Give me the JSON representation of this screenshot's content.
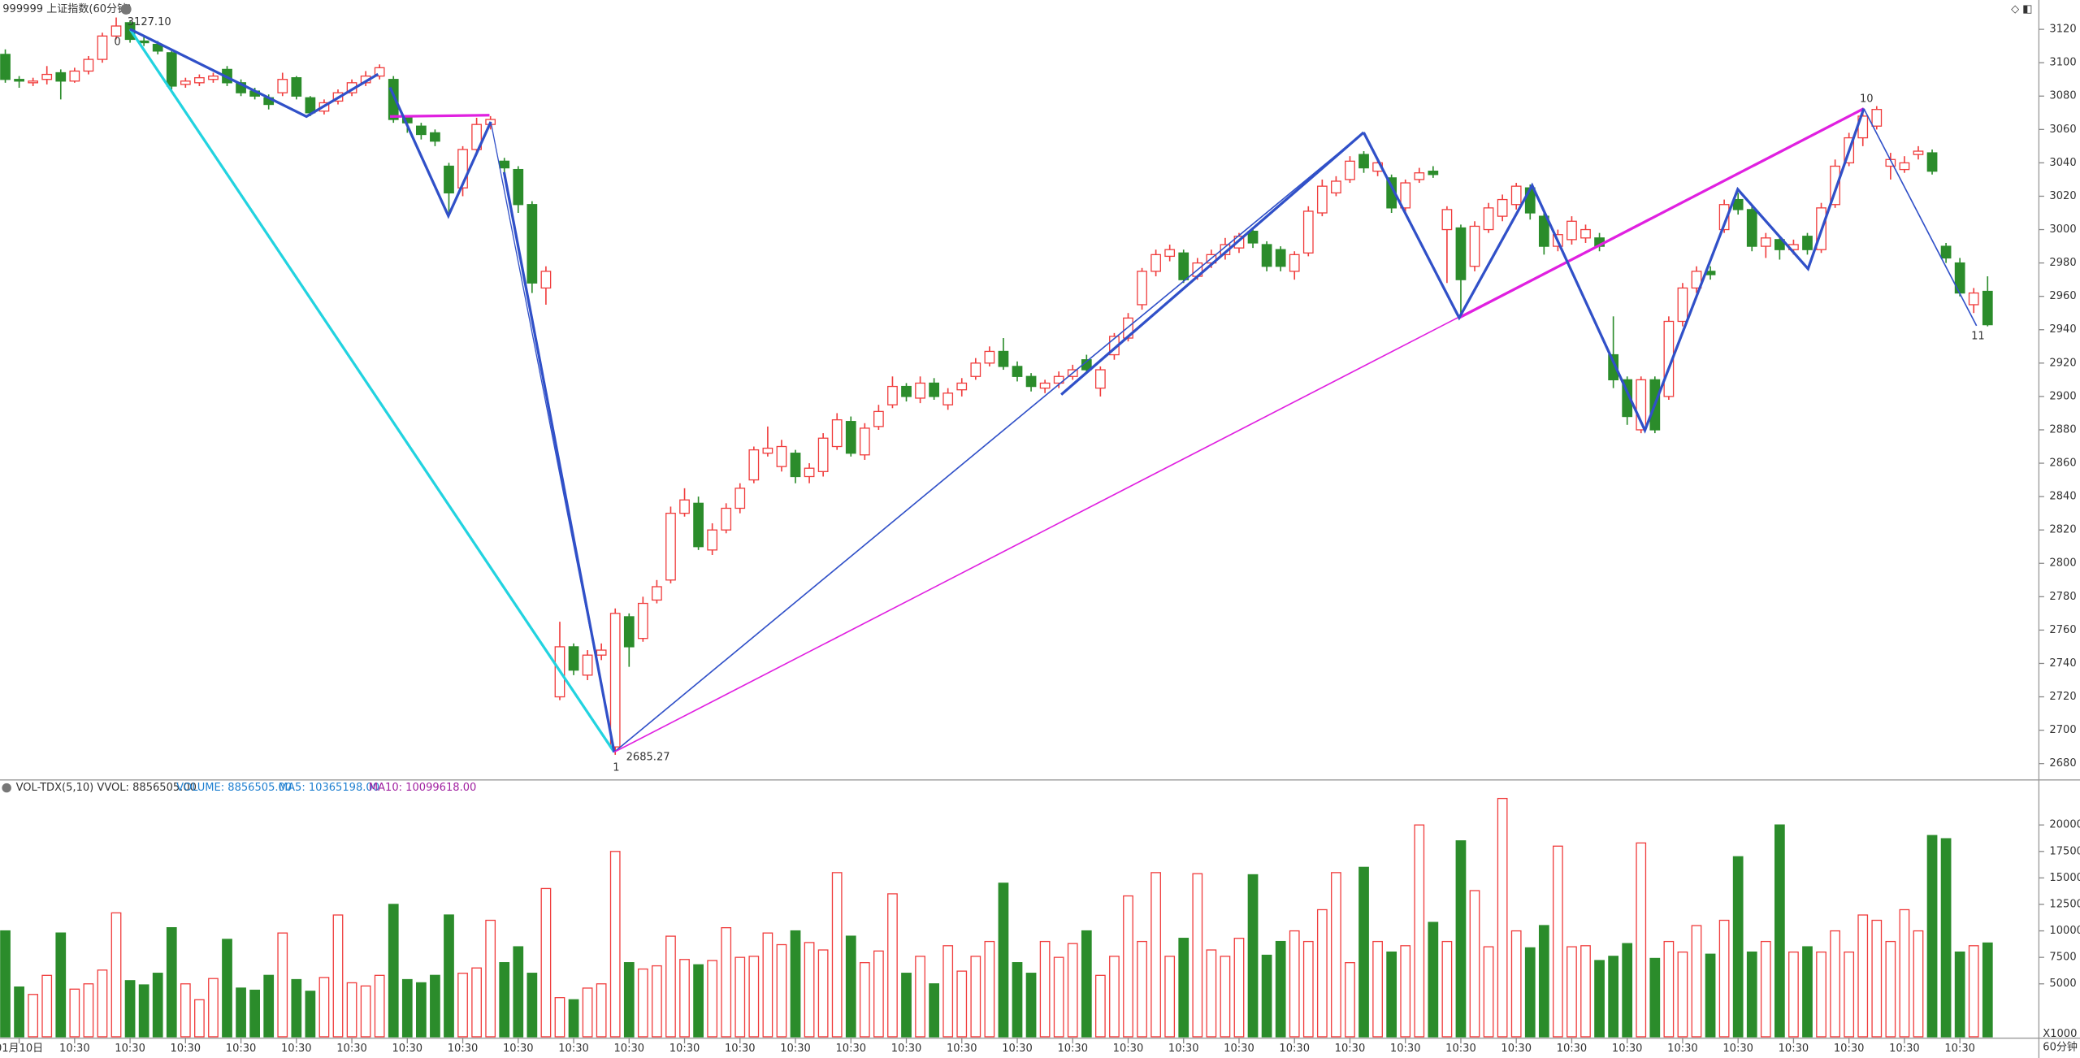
{
  "chart_data": {
    "type": "candlestick",
    "title": "999999 上证指数(60分钟)",
    "volume_title": "VOL-TDX(5,10) VVOL: 8856505.00",
    "volume_legend": [
      "VOLUME: 8856505.00",
      "MA5: 10365198.00",
      "MA10: 10099618.00"
    ],
    "volume_unit": "X1000",
    "period": "60分钟",
    "annotations": [
      "0",
      "3127.10",
      "1",
      "2685.27",
      "10",
      "11"
    ],
    "x_labels": [
      "01月10日",
      "10:30",
      "10:30",
      "10:30",
      "10:30",
      "10:30",
      "10:30",
      "10:30",
      "10:30",
      "10:30",
      "10:30",
      "10:30",
      "10:30",
      "10:30",
      "10:30",
      "10:30",
      "10:30",
      "10:30",
      "10:30",
      "10:30",
      "10:30",
      "10:30",
      "10:30",
      "10:30",
      "10:30",
      "10:30",
      "10:30",
      "10:30",
      "10:30",
      "10:30",
      "10:30",
      "10:30",
      "10:30",
      "10:30",
      "10:30",
      "10:30"
    ],
    "up_color": "#f03c3c",
    "down_color": "#2b8c2b",
    "open": [
      3105,
      3090,
      3088,
      3090,
      3094,
      3089,
      3095,
      3102,
      3116,
      3124,
      3113,
      3111,
      3106,
      3087,
      3088,
      3090,
      3096,
      3088,
      3083,
      3079,
      3082,
      3091,
      3079,
      3071,
      3077,
      3082,
      3088,
      3092,
      3090,
      3067,
      3062,
      3058,
      3038,
      3025,
      3048,
      3063,
      3041,
      3036,
      3015,
      2965,
      2720,
      2750,
      2733,
      2745,
      2690,
      2768,
      2755,
      2778,
      2790,
      2830,
      2836,
      2808,
      2820,
      2833,
      2850,
      2866,
      2858,
      2866,
      2852,
      2855,
      2870,
      2885,
      2865,
      2882,
      2895,
      2906,
      2899,
      2908,
      2895,
      2904,
      2912,
      2920,
      2927,
      2918,
      2912,
      2905,
      2908,
      2912,
      2922,
      2905,
      2925,
      2935,
      2955,
      2975,
      2984,
      2986,
      2972,
      2980,
      2985,
      2989,
      2999,
      2991,
      2988,
      2975,
      2986,
      3010,
      3022,
      3030,
      3045,
      3035,
      3031,
      3013,
      3030,
      3035,
      3000,
      3001,
      2978,
      3000,
      3008,
      3015,
      3025,
      3008,
      2990,
      2994,
      2995,
      2995,
      2925,
      2910,
      2880,
      2910,
      2900,
      2945,
      2965,
      2975,
      3000,
      3018,
      3012,
      2990,
      2994,
      2988,
      2996,
      2988,
      3015,
      3040,
      3055,
      3062,
      3038,
      3036,
      3045,
      3046,
      2990,
      2980,
      2955,
      2963
    ],
    "high": [
      3108,
      3092,
      3091,
      3098,
      3096,
      3097,
      3104,
      3118,
      3127.1,
      3125,
      3116,
      3113,
      3108,
      3091,
      3093,
      3094,
      3098,
      3090,
      3085,
      3081,
      3094,
      3092,
      3080,
      3078,
      3084,
      3090,
      3095,
      3099,
      3092,
      3068,
      3064,
      3060,
      3040,
      3050,
      3067,
      3068,
      3043,
      3038,
      3017,
      2978,
      2765,
      2752,
      2748,
      2752,
      2773,
      2770,
      2780,
      2790,
      2834,
      2845,
      2840,
      2824,
      2836,
      2848,
      2870,
      2882,
      2874,
      2868,
      2860,
      2878,
      2890,
      2888,
      2884,
      2895,
      2912,
      2908,
      2912,
      2911,
      2905,
      2911,
      2923,
      2930,
      2935,
      2921,
      2914,
      2910,
      2915,
      2919,
      2925,
      2918,
      2938,
      2950,
      2977,
      2988,
      2991,
      2988,
      2983,
      2988,
      2995,
      2998,
      3001,
      2993,
      2990,
      2987,
      3014,
      3030,
      3032,
      3044,
      3047,
      3042,
      3033,
      3030,
      3037,
      3038,
      3014,
      3003,
      3005,
      3016,
      3021,
      3028,
      3027,
      3010,
      3000,
      3008,
      3003,
      2998,
      2948,
      2912,
      2912,
      2912,
      2948,
      2968,
      2978,
      2978,
      3018,
      3022,
      3014,
      2998,
      2996,
      2994,
      2998,
      3016,
      3042,
      3058,
      3072,
      3074,
      3046,
      3044,
      3050,
      3048,
      2992,
      2983,
      2965,
      2972
    ],
    "low": [
      3088,
      3085,
      3086,
      3087,
      3078,
      3088,
      3093,
      3100,
      3114,
      3112,
      3110,
      3105,
      3084,
      3085,
      3086,
      3088,
      3086,
      3080,
      3078,
      3072,
      3080,
      3078,
      3068,
      3069,
      3075,
      3080,
      3086,
      3090,
      3064,
      3058,
      3054,
      3050,
      3008,
      3020,
      3046,
      3060,
      3034,
      3010,
      2962,
      2955,
      2718,
      2733,
      2730,
      2742,
      2685.27,
      2738,
      2753,
      2776,
      2788,
      2828,
      2808,
      2805,
      2818,
      2830,
      2848,
      2864,
      2855,
      2848,
      2848,
      2852,
      2868,
      2864,
      2862,
      2880,
      2893,
      2897,
      2896,
      2898,
      2892,
      2900,
      2910,
      2918,
      2916,
      2909,
      2903,
      2902,
      2905,
      2910,
      2914,
      2900,
      2922,
      2933,
      2952,
      2972,
      2981,
      2968,
      2970,
      2977,
      2982,
      2986,
      2989,
      2975,
      2975,
      2970,
      2984,
      3008,
      3020,
      3028,
      3034,
      3032,
      3010,
      3010,
      3028,
      3031,
      2968,
      2948,
      2975,
      2998,
      3005,
      3012,
      3006,
      2985,
      2987,
      2991,
      2992,
      2987,
      2905,
      2883,
      2878,
      2878,
      2898,
      2942,
      2962,
      2970,
      2998,
      3009,
      2987,
      2983,
      2982,
      2985,
      2985,
      2986,
      3013,
      3038,
      3050,
      3060,
      3030,
      3034,
      3042,
      3033,
      2980,
      2960,
      2950,
      2942
    ],
    "close": [
      3090,
      3089,
      3089,
      3093,
      3089,
      3095,
      3102,
      3116,
      3122,
      3114,
      3112,
      3107,
      3086,
      3089,
      3091,
      3092,
      3088,
      3082,
      3080,
      3075,
      3090,
      3080,
      3070,
      3076,
      3082,
      3088,
      3092,
      3097,
      3066,
      3064,
      3057,
      3053,
      3022,
      3048,
      3063,
      3066,
      3037,
      3015,
      2968,
      2975,
      2750,
      2736,
      2745,
      2748,
      2770,
      2750,
      2776,
      2786,
      2830,
      2838,
      2810,
      2820,
      2833,
      2845,
      2868,
      2869,
      2870,
      2852,
      2857,
      2875,
      2886,
      2866,
      2881,
      2891,
      2906,
      2900,
      2908,
      2900,
      2902,
      2908,
      2920,
      2927,
      2918,
      2912,
      2906,
      2908,
      2912,
      2916,
      2916,
      2916,
      2936,
      2947,
      2975,
      2985,
      2988,
      2970,
      2980,
      2985,
      2991,
      2996,
      2992,
      2978,
      2978,
      2985,
      3011,
      3026,
      3029,
      3041,
      3037,
      3040,
      3013,
      3028,
      3034,
      3033,
      3012,
      2970,
      3002,
      3013,
      3018,
      3026,
      3010,
      2990,
      2997,
      3005,
      3000,
      2990,
      2910,
      2888,
      2910,
      2880,
      2945,
      2965,
      2975,
      2973,
      3015,
      3012,
      2990,
      2995,
      2988,
      2991,
      2988,
      3013,
      3038,
      3055,
      3068,
      3072,
      3042,
      3040,
      3047,
      3035,
      2983,
      2962,
      2962,
      2943
    ],
    "volume": [
      10000,
      4700,
      4000,
      5800,
      9800,
      4500,
      5000,
      6300,
      11700,
      5300,
      4900,
      6000,
      10300,
      5000,
      3500,
      5500,
      9200,
      4600,
      4400,
      5800,
      9800,
      5400,
      4300,
      5600,
      11500,
      5100,
      4800,
      5800,
      12500,
      5400,
      5100,
      5800,
      11500,
      6000,
      6500,
      11000,
      7000,
      8500,
      6000,
      14000,
      3700,
      3500,
      4600,
      5000,
      17500,
      7000,
      6400,
      6700,
      9500,
      7300,
      6800,
      7200,
      10300,
      7500,
      7600,
      9800,
      8700,
      10000,
      8900,
      8200,
      15500,
      9500,
      7000,
      8100,
      13500,
      6000,
      7600,
      5000,
      8600,
      6200,
      7600,
      9000,
      14500,
      7000,
      6000,
      9000,
      7500,
      8800,
      10000,
      5800,
      7600,
      13300,
      9000,
      15500,
      7600,
      9300,
      15400,
      8200,
      7600,
      9300,
      15300,
      7700,
      9000,
      10000,
      9000,
      12000,
      15500,
      7000,
      16000,
      9000,
      8000,
      8600,
      20000,
      10800,
      9000,
      18500,
      13800,
      8500,
      22500,
      10000,
      8400,
      10500,
      18000,
      8500,
      8600,
      7200,
      7600,
      8800,
      18300,
      7400,
      9000,
      8000,
      10500,
      7800,
      11000,
      17000,
      8000,
      9000,
      20000,
      8000,
      8500,
      8000,
      10000,
      8000,
      11500,
      11000,
      9000,
      12000,
      10000,
      19000,
      18700,
      8000,
      8600,
      8856
    ],
    "ylim": [
      2671,
      3136
    ],
    "yticks": [
      2680,
      2700,
      2720,
      2740,
      2760,
      2780,
      2800,
      2820,
      2840,
      2860,
      2880,
      2900,
      2920,
      2940,
      2960,
      2980,
      3000,
      3020,
      3040,
      3060,
      3080,
      3100,
      3120
    ],
    "volume_ylim": [
      0,
      23875
    ],
    "volume_yticks": [
      5000,
      7500,
      10000,
      12500,
      15000,
      17500,
      20000
    ]
  }
}
